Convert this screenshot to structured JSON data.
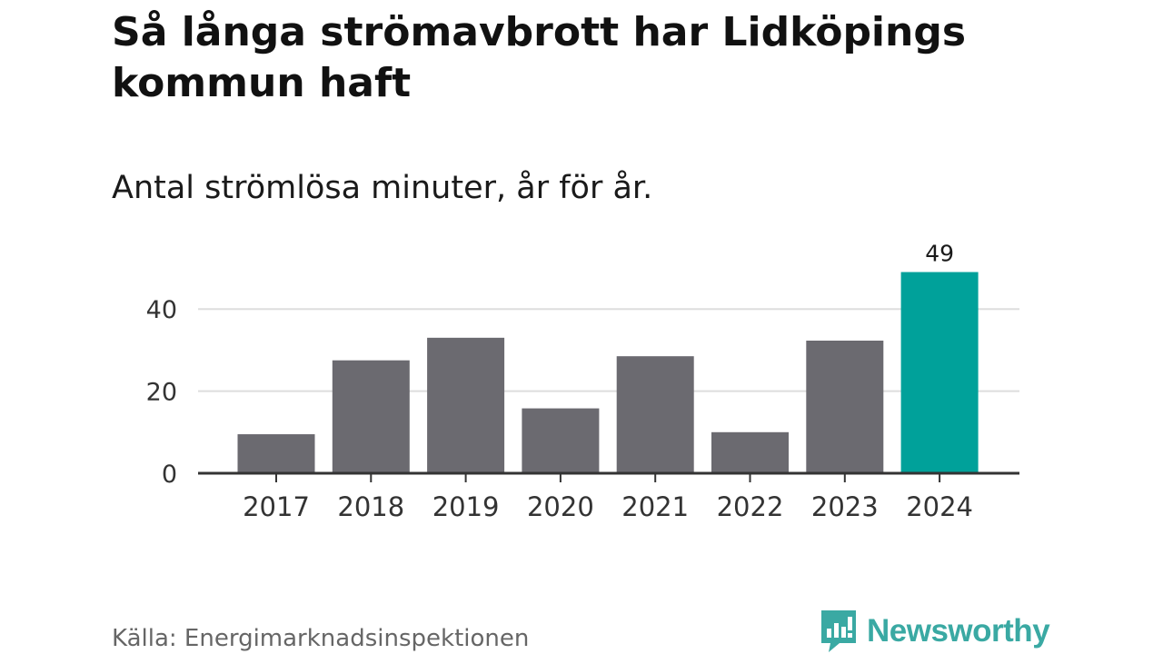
{
  "title": "Så långa strömavbrott har Lidköpings kommun haft",
  "subtitle": "Antal strömlösa minuter, år för år.",
  "source": "Källa: Energimarknadsinspektionen",
  "brand": "Newsworthy",
  "colors": {
    "bar": "#6b6a70",
    "highlight": "#00a19a",
    "grid": "#dddddd",
    "axis": "#333333",
    "brand": "#3aa9a3"
  },
  "chart_data": {
    "type": "bar",
    "title": "Så långa strömavbrott har Lidköpings kommun haft",
    "subtitle": "Antal strömlösa minuter, år för år.",
    "categories": [
      "2017",
      "2018",
      "2019",
      "2020",
      "2021",
      "2022",
      "2023",
      "2024"
    ],
    "values": [
      9.5,
      27.5,
      33,
      15.8,
      28.5,
      10,
      32.3,
      49
    ],
    "highlight_index": 7,
    "data_labels": [
      {
        "index": 7,
        "text": "49"
      }
    ],
    "yticks": [
      0,
      20,
      40
    ],
    "ytick_labels": [
      "0",
      "20",
      "40"
    ],
    "ylim": [
      0,
      50
    ],
    "xlabel": "",
    "ylabel": "",
    "grid": true
  }
}
